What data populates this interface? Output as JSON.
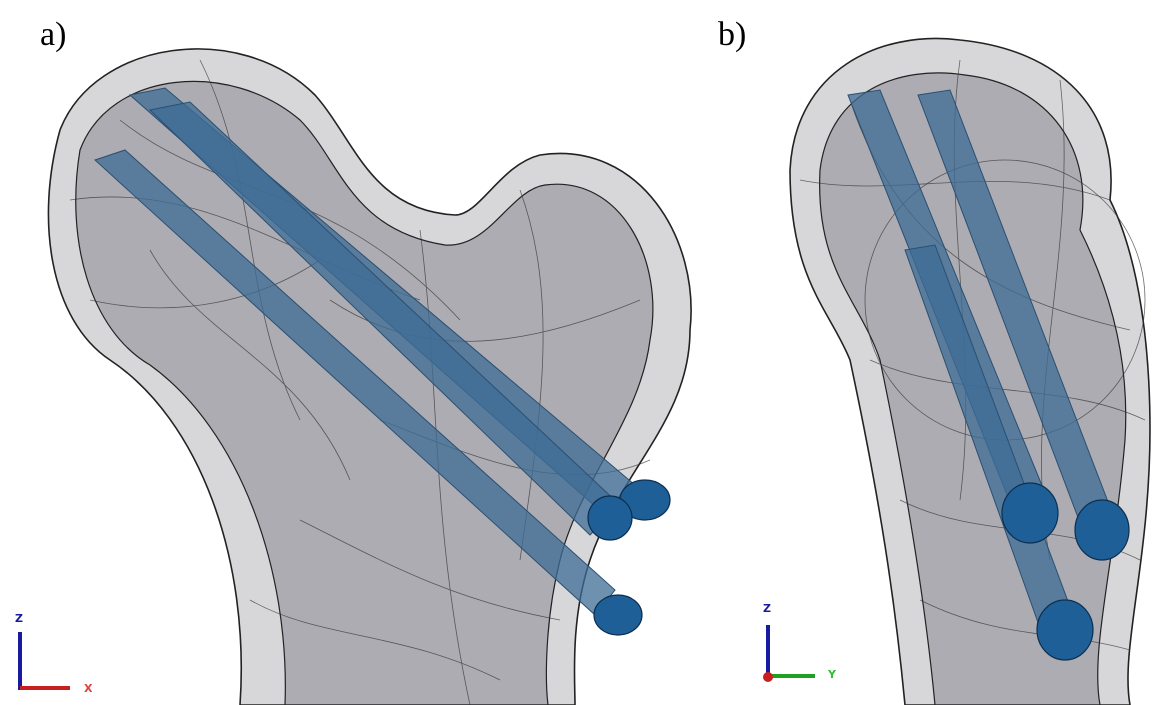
{
  "panels": [
    {
      "label": "a)",
      "axes": [
        "Z",
        "X"
      ]
    },
    {
      "label": "b)",
      "axes": [
        "Z",
        "Y"
      ]
    }
  ]
}
